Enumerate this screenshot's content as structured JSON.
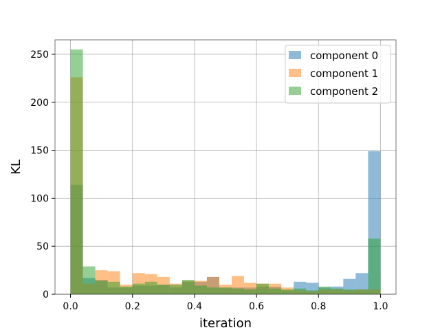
{
  "chart_data": {
    "type": "bar",
    "xlabel": "iteration",
    "ylabel": "KL",
    "xlim": [
      -0.05,
      1.05
    ],
    "ylim": [
      0,
      265
    ],
    "xticks": [
      "0.0",
      "0.2",
      "0.4",
      "0.6",
      "0.8",
      "1.0"
    ],
    "yticks": [
      "0",
      "50",
      "100",
      "150",
      "200",
      "250"
    ],
    "grid": true,
    "legend_position": "top-right",
    "bin_starts": [
      0.0,
      0.04,
      0.08,
      0.12,
      0.16,
      0.2,
      0.24,
      0.28,
      0.32,
      0.36,
      0.4,
      0.44,
      0.48,
      0.52,
      0.56,
      0.6,
      0.64,
      0.68,
      0.72,
      0.76,
      0.8,
      0.84,
      0.88,
      0.92,
      0.96
    ],
    "bin_width": 0.04,
    "series": [
      {
        "name": "component 0",
        "color": "#1f77b4",
        "values": [
          114,
          17,
          15,
          7,
          7,
          9,
          9,
          10,
          7,
          13,
          13,
          18,
          7,
          7,
          7,
          8,
          8,
          4,
          13,
          12,
          7,
          8,
          16,
          22,
          149
        ]
      },
      {
        "name": "component 1",
        "color": "#ff7f0e",
        "values": [
          226,
          11,
          25,
          24,
          10,
          22,
          21,
          18,
          11,
          14,
          14,
          18,
          10,
          19,
          12,
          11,
          11,
          7,
          4,
          3,
          5,
          5,
          4,
          5,
          5
        ]
      },
      {
        "name": "component 2",
        "color": "#2ca02c",
        "values": [
          255,
          29,
          14,
          13,
          8,
          11,
          13,
          10,
          10,
          15,
          9,
          7,
          7,
          6,
          5,
          11,
          6,
          5,
          6,
          4,
          8,
          6,
          5,
          5,
          58
        ]
      }
    ]
  }
}
